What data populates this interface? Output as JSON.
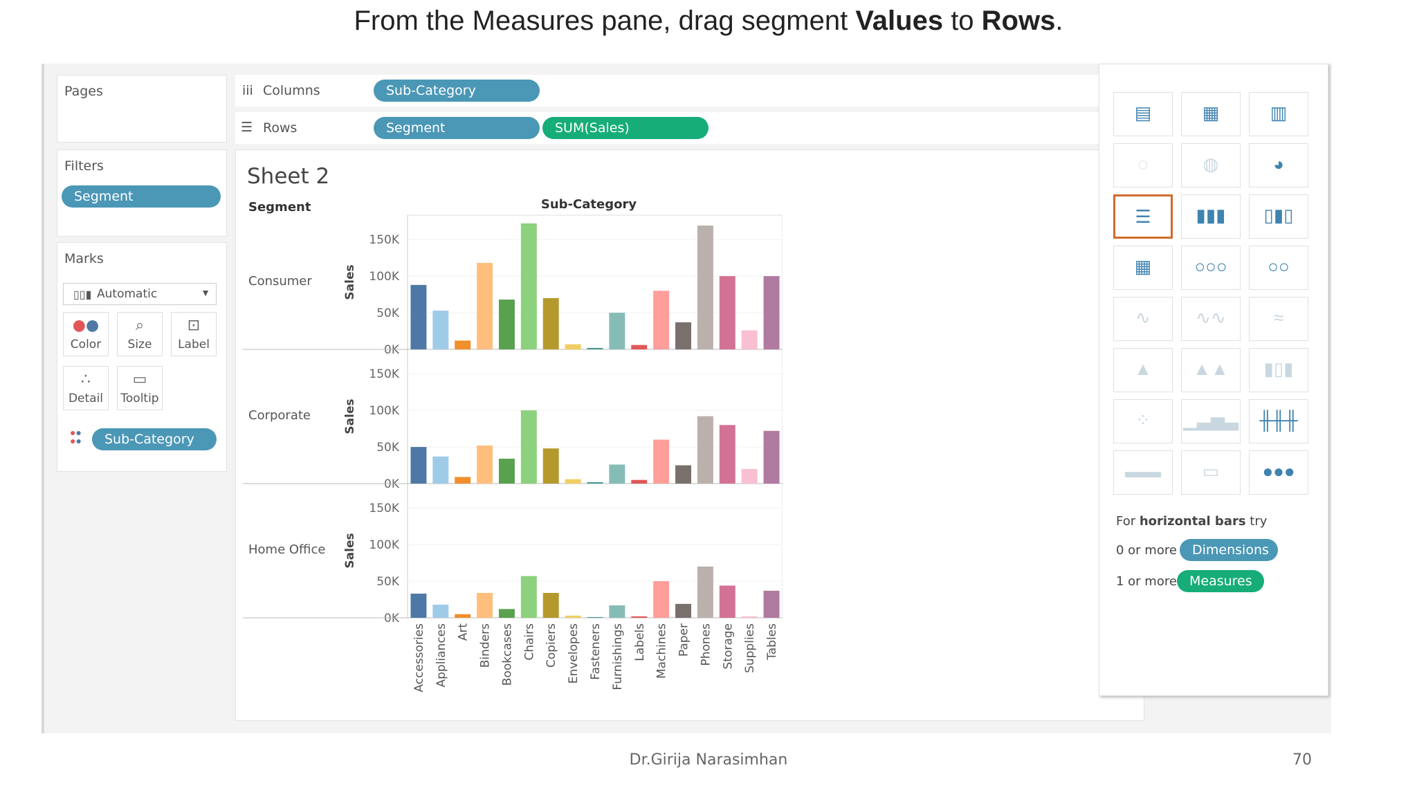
{
  "slide": {
    "title_pre": "From the Measures pane, drag segment ",
    "title_b1": "Values",
    "title_mid": " to ",
    "title_b2": "Rows",
    "title_post": ".",
    "footer_author": "Dr.Girija Narasimhan",
    "page_number": "70"
  },
  "left": {
    "pages_label": "Pages",
    "filters_label": "Filters",
    "filter_pill": "Segment",
    "marks_label": "Marks",
    "mark_type": "Automatic",
    "mark_buttons": [
      "Color",
      "Size",
      "Label",
      "Detail",
      "Tooltip"
    ],
    "mark_pill": "Sub-Category"
  },
  "shelves": {
    "columns_label": "Columns",
    "rows_label": "Rows",
    "columns_pill": "Sub-Category",
    "rows_pill_1": "Segment",
    "rows_pill_2": "SUM(Sales)"
  },
  "sheet": {
    "title": "Sheet 2",
    "row_header": "Segment",
    "col_header": "Sub-Category"
  },
  "showme": {
    "hint_pre": "For ",
    "hint_bold": "horizontal bars",
    "hint_post": " try",
    "dim_req": "0 or more",
    "dim_pill": "Dimensions",
    "mea_req": "1 or more",
    "mea_pill": "Measures"
  },
  "chart_data": {
    "type": "bar",
    "categories": [
      "Accessories",
      "Appliances",
      "Art",
      "Binders",
      "Bookcases",
      "Chairs",
      "Copiers",
      "Envelopes",
      "Fasteners",
      "Furnishings",
      "Labels",
      "Machines",
      "Paper",
      "Phones",
      "Storage",
      "Supplies",
      "Tables"
    ],
    "colors": [
      "#4e79a7",
      "#a0cbe8",
      "#f28e2b",
      "#ffbe7d",
      "#59a14f",
      "#8cd17d",
      "#b6992d",
      "#f1ce63",
      "#499894",
      "#86bcb6",
      "#e15759",
      "#ff9d9a",
      "#79706e",
      "#bab0ac",
      "#d37295",
      "#fabfd2",
      "#b07aa1"
    ],
    "ylabel": "Sales",
    "yticks": [
      "150K",
      "100K",
      "50K",
      "0K"
    ],
    "ylim": [
      0,
      170000
    ],
    "series": [
      {
        "name": "Consumer",
        "values": [
          88000,
          53000,
          12000,
          118000,
          68000,
          172000,
          70000,
          7000,
          2000,
          50000,
          6000,
          80000,
          37000,
          169000,
          100000,
          26000,
          100000
        ]
      },
      {
        "name": "Corporate",
        "values": [
          50000,
          37000,
          9000,
          52000,
          34000,
          100000,
          48000,
          6000,
          2000,
          26000,
          5000,
          60000,
          25000,
          92000,
          80000,
          20000,
          72000
        ]
      },
      {
        "name": "Home Office",
        "values": [
          33000,
          18000,
          5000,
          34000,
          12000,
          57000,
          34000,
          3000,
          1000,
          17000,
          2000,
          50000,
          19000,
          70000,
          44000,
          2000,
          37000
        ]
      }
    ]
  }
}
